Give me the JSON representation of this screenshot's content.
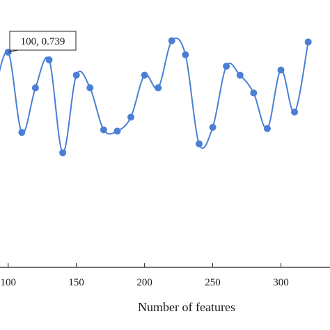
{
  "chart_data": {
    "type": "line",
    "xlabel": "Number of features",
    "ylabel": "",
    "title": "",
    "xlim": [
      94,
      336
    ],
    "ylim": [
      0.57,
      0.78
    ],
    "xticks": [
      100,
      150,
      200,
      250,
      300
    ],
    "tick_labels": [
      "100",
      "150",
      "200",
      "250",
      "300"
    ],
    "grid": false,
    "series": [
      {
        "color": "#4a7fd4",
        "x": [
          90,
          100,
          110,
          120,
          130,
          140,
          150,
          160,
          170,
          180,
          190,
          200,
          210,
          220,
          230,
          240,
          250,
          260,
          270,
          280,
          290,
          300,
          310,
          320
        ],
        "y": [
          0.708,
          0.739,
          0.676,
          0.711,
          0.733,
          0.66,
          0.721,
          0.711,
          0.678,
          0.677,
          0.688,
          0.721,
          0.711,
          0.748,
          0.737,
          0.667,
          0.68,
          0.728,
          0.721,
          0.707,
          0.679,
          0.725,
          0.692,
          0.747
        ]
      }
    ],
    "annotation": {
      "text": "100, 0.739",
      "x": 100,
      "y": 0.739
    }
  }
}
